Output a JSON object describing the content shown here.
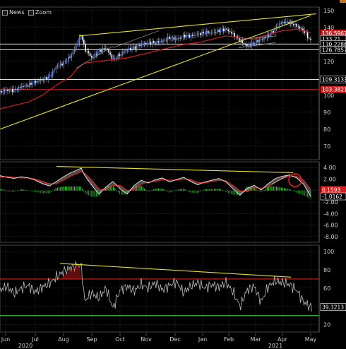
{
  "toolbar": {
    "news_label": "News",
    "zoom_label": "Zoom"
  },
  "colors": {
    "price_series": "#4e86ff",
    "moving_average": "#d51d1d",
    "trendline": "#e6de2a",
    "support_line": "#ffffff",
    "oscillator_line": "#bdbdbd",
    "histogram_positive": "#31c52e",
    "histogram_negative": "#1f8a1f"
  },
  "chart_data": [
    {
      "type": "line",
      "pane": "price",
      "y_ticks": [
        "150",
        "140",
        "130",
        "120",
        "110",
        "100",
        "90",
        "80",
        "70"
      ],
      "ylim": [
        62,
        152
      ],
      "price_tags": [
        {
          "value": "136.5967",
          "y": 136.6,
          "color": "#d51d1d"
        },
        {
          "value": "133.21",
          "y": 133.2,
          "color": "#ffffff"
        },
        {
          "value": "130.2286",
          "y": 130.2,
          "color": "#ffffff"
        },
        {
          "value": "126.7857",
          "y": 126.8,
          "color": "#ffffff"
        },
        {
          "value": "109.3133",
          "y": 109.3,
          "color": "#ffffff"
        },
        {
          "value": "103.3821",
          "y": 103.4,
          "color": "#d51d1d"
        }
      ],
      "horizontal_lines": [
        {
          "y": 130.2,
          "color": "#ffffff"
        },
        {
          "y": 126.8,
          "color": "#ffffff"
        },
        {
          "y": 109.3,
          "color": "#ffffff"
        },
        {
          "y": 103.4,
          "color": "#d51d1d"
        }
      ],
      "series": [
        {
          "name": "",
          "x": [
            0,
            10,
            20,
            30,
            40,
            50,
            60,
            70,
            80,
            90,
            100,
            110,
            115,
            120,
            125,
            130,
            140,
            150,
            160,
            170,
            180,
            190,
            200,
            210,
            220,
            230,
            240,
            250,
            260,
            270,
            280,
            290,
            300,
            310,
            320,
            330,
            340,
            350,
            360,
            370,
            380,
            390,
            395,
            400,
            410,
            420,
            430,
            440
          ],
          "values": [
            102,
            103,
            103,
            105,
            106,
            108,
            109,
            111,
            117,
            119,
            123,
            131,
            136,
            127,
            125,
            122,
            126,
            128,
            121,
            124,
            127,
            128,
            130,
            131,
            131,
            132,
            134,
            133,
            135,
            135,
            136,
            137,
            137,
            138,
            139,
            136,
            132,
            129,
            131,
            133,
            135,
            139,
            142,
            143,
            143,
            141,
            138,
            132
          ]
        },
        {
          "name": "",
          "x": [
            0,
            20,
            40,
            60,
            80,
            100,
            110,
            120,
            140,
            160,
            180,
            200,
            220,
            240,
            260,
            280,
            300,
            320,
            340,
            360,
            380,
            400,
            420,
            440
          ],
          "values": [
            92,
            94,
            96,
            100,
            106,
            111,
            116,
            119,
            120,
            121,
            122,
            124,
            126,
            128,
            130,
            131,
            133,
            135,
            134,
            133,
            136,
            138,
            139,
            137
          ]
        }
      ],
      "trendlines": [
        {
          "x1": 0,
          "y1": 80,
          "x2": 440,
          "y2": 147
        },
        {
          "x1": 112,
          "y1": 135,
          "x2": 448,
          "y2": 148
        },
        {
          "x1": 108,
          "y1": 116,
          "x2": 160,
          "y2": 129
        },
        {
          "x1": 160,
          "y1": 128,
          "x2": 225,
          "y2": 138
        }
      ]
    },
    {
      "type": "line",
      "pane": "oscillator",
      "y_ticks": [
        "4.00",
        "2.00",
        "0.00",
        "-2.00",
        "-4.00",
        "-6.00",
        "-8.00"
      ],
      "ylim": [
        -9,
        5
      ],
      "value_tags": [
        {
          "value": "0.1593",
          "y": 0.16,
          "color": "#d51d1d"
        },
        {
          "value": "-1.0162",
          "y": -1.02,
          "color": "#ffffff"
        }
      ],
      "x": [
        0,
        10,
        20,
        30,
        40,
        50,
        60,
        70,
        80,
        90,
        100,
        110,
        115,
        120,
        130,
        140,
        150,
        160,
        170,
        180,
        190,
        200,
        210,
        220,
        230,
        240,
        250,
        260,
        270,
        280,
        290,
        300,
        310,
        320,
        330,
        340,
        350,
        360,
        370,
        380,
        390,
        400,
        410,
        420,
        430,
        440
      ],
      "values": [
        2.6,
        2.3,
        2.1,
        2.4,
        2.2,
        1.8,
        1.2,
        0.8,
        1.6,
        2.4,
        3.1,
        3.6,
        3.9,
        2.6,
        0.9,
        -0.6,
        0.6,
        1.6,
        0.3,
        -0.6,
        0.9,
        1.8,
        1.3,
        1.9,
        2.2,
        1.5,
        1.9,
        2.3,
        1.6,
        1.0,
        1.5,
        1.8,
        2.1,
        1.5,
        0.3,
        -0.8,
        0.4,
        0.9,
        0.1,
        1.2,
        2.1,
        2.5,
        2.7,
        2.2,
        1.1,
        -1.0
      ],
      "signal": [
        2.3,
        2.4,
        2.3,
        2.2,
        2.2,
        2.0,
        1.6,
        1.2,
        1.2,
        1.8,
        2.5,
        3.0,
        3.3,
        3.0,
        1.8,
        0.3,
        0.0,
        0.9,
        0.9,
        0.0,
        0.2,
        1.1,
        1.5,
        1.6,
        1.9,
        1.8,
        1.8,
        2.0,
        1.9,
        1.4,
        1.3,
        1.6,
        1.8,
        1.7,
        0.9,
        -0.1,
        -0.2,
        0.5,
        0.4,
        0.6,
        1.5,
        2.1,
        2.5,
        2.5,
        1.8,
        0.2
      ],
      "trendlines": [
        {
          "x1": 80,
          "y1": 4.2,
          "x2": 415,
          "y2": 3.1
        },
        {
          "x1": 385,
          "y1": 1.1,
          "x2": 410,
          "y2": 2.8
        }
      ],
      "circle": {
        "x": 418,
        "y": 1.8
      }
    },
    {
      "type": "line",
      "pane": "rsi",
      "y_ticks": [
        "100",
        "80",
        "60",
        "40",
        "20"
      ],
      "ylim": [
        12,
        107
      ],
      "value_tags": [
        {
          "value": "39.3213",
          "y": 39.3,
          "color": "#ffffff"
        }
      ],
      "horizontal_lines": [
        {
          "y": 70,
          "color": "#d51d1d"
        },
        {
          "y": 30,
          "color": "#31c52e"
        }
      ],
      "x": [
        0,
        10,
        20,
        30,
        40,
        50,
        60,
        70,
        80,
        90,
        100,
        110,
        115,
        120,
        130,
        140,
        150,
        160,
        170,
        180,
        190,
        200,
        210,
        220,
        230,
        240,
        250,
        260,
        270,
        280,
        290,
        300,
        310,
        320,
        330,
        340,
        350,
        360,
        370,
        380,
        390,
        400,
        410,
        420,
        430,
        440
      ],
      "values": [
        58,
        62,
        54,
        60,
        63,
        56,
        61,
        65,
        72,
        78,
        82,
        86,
        84,
        46,
        55,
        49,
        60,
        38,
        58,
        62,
        57,
        64,
        60,
        66,
        58,
        63,
        67,
        55,
        62,
        66,
        60,
        64,
        61,
        66,
        56,
        40,
        58,
        62,
        45,
        62,
        68,
        66,
        64,
        58,
        45,
        39
      ],
      "trendlines": [
        {
          "x1": 85,
          "y1": 87,
          "x2": 412,
          "y2": 72
        }
      ]
    }
  ],
  "x_axis": {
    "x_range": [
      0,
      448
    ],
    "months": [
      {
        "label": "Jun",
        "x": 8
      },
      {
        "label": "Jul",
        "x": 50
      },
      {
        "label": "Aug",
        "x": 90
      },
      {
        "label": "Sep",
        "x": 130
      },
      {
        "label": "Oct",
        "x": 170
      },
      {
        "label": "Nov",
        "x": 207
      },
      {
        "label": "Dec",
        "x": 248
      },
      {
        "label": "Jan",
        "x": 287
      },
      {
        "label": "Feb",
        "x": 324
      },
      {
        "label": "Mar",
        "x": 362
      },
      {
        "label": "Apr",
        "x": 400
      },
      {
        "label": "May",
        "x": 440
      }
    ],
    "years": [
      {
        "label": "2020",
        "x": 8
      },
      {
        "label": "2021",
        "x": 362
      }
    ]
  }
}
